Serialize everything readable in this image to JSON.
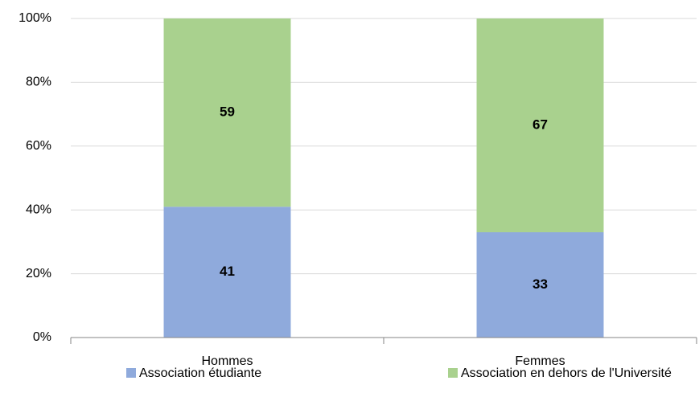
{
  "chart_data": {
    "type": "stacked_bar",
    "categories": [
      "Hommes",
      "Femmes"
    ],
    "series": [
      {
        "name": "Association étudiante",
        "color": "#8faadc",
        "values": [
          41,
          33
        ]
      },
      {
        "name": "Association en dehors de l'Université",
        "color": "#a9d18e",
        "values": [
          59,
          67
        ]
      }
    ],
    "ylim": [
      0,
      100
    ],
    "yticks": [
      {
        "value": 0,
        "label": "0%"
      },
      {
        "value": 20,
        "label": "20%"
      },
      {
        "value": 40,
        "label": "40%"
      },
      {
        "value": 60,
        "label": "60%"
      },
      {
        "value": 80,
        "label": "80%"
      },
      {
        "value": 100,
        "label": "100%"
      }
    ],
    "grid": true,
    "legend": "bottom"
  }
}
